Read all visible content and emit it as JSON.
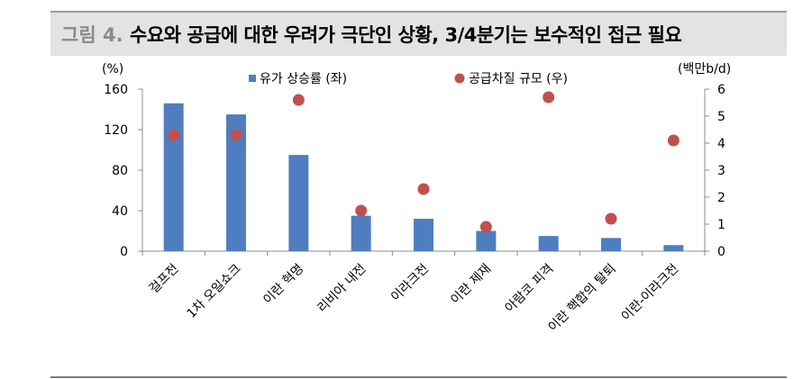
{
  "header": {
    "figure_label": "그림 4.",
    "title": "수요와 공급에 대한 우려가 극단인 상황, 3/4분기는 보수적인 접근 필요"
  },
  "chart_data": {
    "type": "bar",
    "categories": [
      "걸프전",
      "1차 오일쇼크",
      "이란 혁명",
      "리비아 내전",
      "이라크전",
      "이란 제재",
      "아람코 피격",
      "이란 핵합의 탈퇴",
      "이란-이라크전"
    ],
    "series": [
      {
        "name": "유가 상승률 (좌)",
        "kind": "bar",
        "axis": "left",
        "color": "#4f7ec0",
        "values": [
          146,
          135,
          95,
          35,
          32,
          20,
          15,
          13,
          6
        ]
      },
      {
        "name": "공급차질 규모 (우)",
        "kind": "scatter",
        "axis": "right",
        "color": "#c0504d",
        "values": [
          4.3,
          4.3,
          5.6,
          1.5,
          2.3,
          0.9,
          5.7,
          1.2,
          4.1
        ]
      }
    ],
    "left_axis": {
      "unit": "(%)",
      "ylim": [
        0,
        160
      ],
      "ticks": [
        "0",
        "40",
        "80",
        "120",
        "160"
      ]
    },
    "right_axis": {
      "unit": "(백만b/d)",
      "ylim": [
        0,
        6
      ],
      "ticks": [
        "0",
        "1",
        "2",
        "3",
        "4",
        "5",
        "6"
      ]
    },
    "legend_position": "top",
    "grid": false
  }
}
